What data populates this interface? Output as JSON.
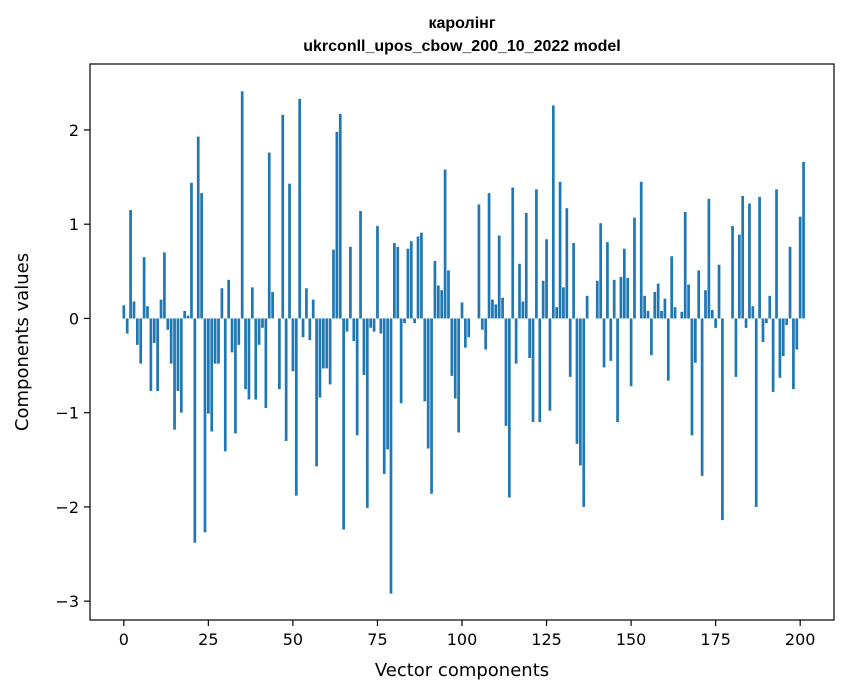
{
  "chart_data": {
    "type": "bar",
    "title_line1": "каролінг",
    "title_line2": "ukrconll_upos_cbow_200_10_2022 model",
    "xlabel": "Vector components",
    "ylabel": "Components values",
    "xlim": [
      -10,
      210
    ],
    "ylim": [
      -3.2,
      2.7
    ],
    "xticks": [
      0,
      25,
      50,
      75,
      100,
      125,
      150,
      175,
      200
    ],
    "xtick_labels": [
      "0",
      "25",
      "50",
      "75",
      "100",
      "125",
      "150",
      "175",
      "200"
    ],
    "yticks": [
      -3,
      -2,
      -1,
      0,
      1,
      2
    ],
    "ytick_labels": [
      "−3",
      "−2",
      "−1",
      "0",
      "1",
      "2"
    ],
    "bar_color": "#1f77b4",
    "grid": false,
    "values": [
      0.14,
      -0.16,
      1.15,
      0.18,
      -0.28,
      -0.48,
      0.65,
      0.13,
      -0.77,
      -0.26,
      -0.77,
      0.2,
      0.7,
      -0.12,
      -0.48,
      -1.18,
      -0.77,
      -1.0,
      0.08,
      0.03,
      1.44,
      -2.38,
      1.93,
      1.33,
      -2.27,
      -1.01,
      -1.2,
      -0.48,
      -0.48,
      0.32,
      -1.41,
      0.41,
      -0.36,
      -1.22,
      -0.28,
      2.41,
      -0.75,
      -0.86,
      0.33,
      -0.86,
      -0.28,
      -0.1,
      -0.95,
      1.76,
      0.28,
      0.0,
      -0.75,
      2.16,
      -1.3,
      1.43,
      -0.56,
      -1.88,
      2.33,
      -0.2,
      0.32,
      -0.23,
      0.2,
      -1.57,
      -0.84,
      -0.53,
      -0.53,
      -0.7,
      0.73,
      1.98,
      2.17,
      -2.24,
      -0.14,
      0.76,
      -0.24,
      -1.24,
      1.14,
      -0.6,
      -2.01,
      -0.1,
      -0.14,
      0.98,
      -0.16,
      -1.65,
      -1.39,
      -2.92,
      0.8,
      0.76,
      -0.9,
      -0.05,
      0.74,
      0.82,
      -0.05,
      0.87,
      0.91,
      -0.88,
      -1.38,
      -1.86,
      0.61,
      0.35,
      0.3,
      1.58,
      0.51,
      -0.61,
      -0.85,
      -1.21,
      0.17,
      -0.31,
      -0.2,
      0.0,
      0.0,
      1.21,
      -0.12,
      -0.33,
      1.33,
      0.2,
      0.15,
      0.88,
      0.22,
      -1.14,
      -1.9,
      1.39,
      -0.48,
      0.58,
      0.18,
      1.12,
      -0.42,
      -1.1,
      1.37,
      -1.1,
      0.4,
      0.84,
      -0.98,
      2.26,
      0.12,
      1.45,
      0.33,
      1.17,
      -0.62,
      0.8,
      -1.33,
      -1.56,
      -2.0,
      0.24,
      0.0,
      0.0,
      0.4,
      1.01,
      -0.52,
      0.81,
      -0.45,
      0.41,
      -1.1,
      0.44,
      0.74,
      0.43,
      -0.72,
      1.07,
      0.0,
      1.45,
      0.24,
      0.08,
      -0.39,
      0.28,
      0.37,
      0.08,
      0.21,
      -0.66,
      0.66,
      0.12,
      0.0,
      0.07,
      1.13,
      0.36,
      -1.24,
      -0.47,
      0.51,
      -1.67,
      0.3,
      1.27,
      0.09,
      -0.1,
      0.57,
      -2.14,
      0.0,
      0.0,
      0.98,
      -0.62,
      0.89,
      1.3,
      -0.1,
      1.22,
      0.13,
      -2.0,
      1.29,
      -0.25,
      -0.05,
      0.24,
      -0.78,
      1.37,
      -0.63,
      -0.4,
      -0.07,
      0.76,
      -0.75,
      -0.33,
      1.08,
      1.66
    ]
  }
}
